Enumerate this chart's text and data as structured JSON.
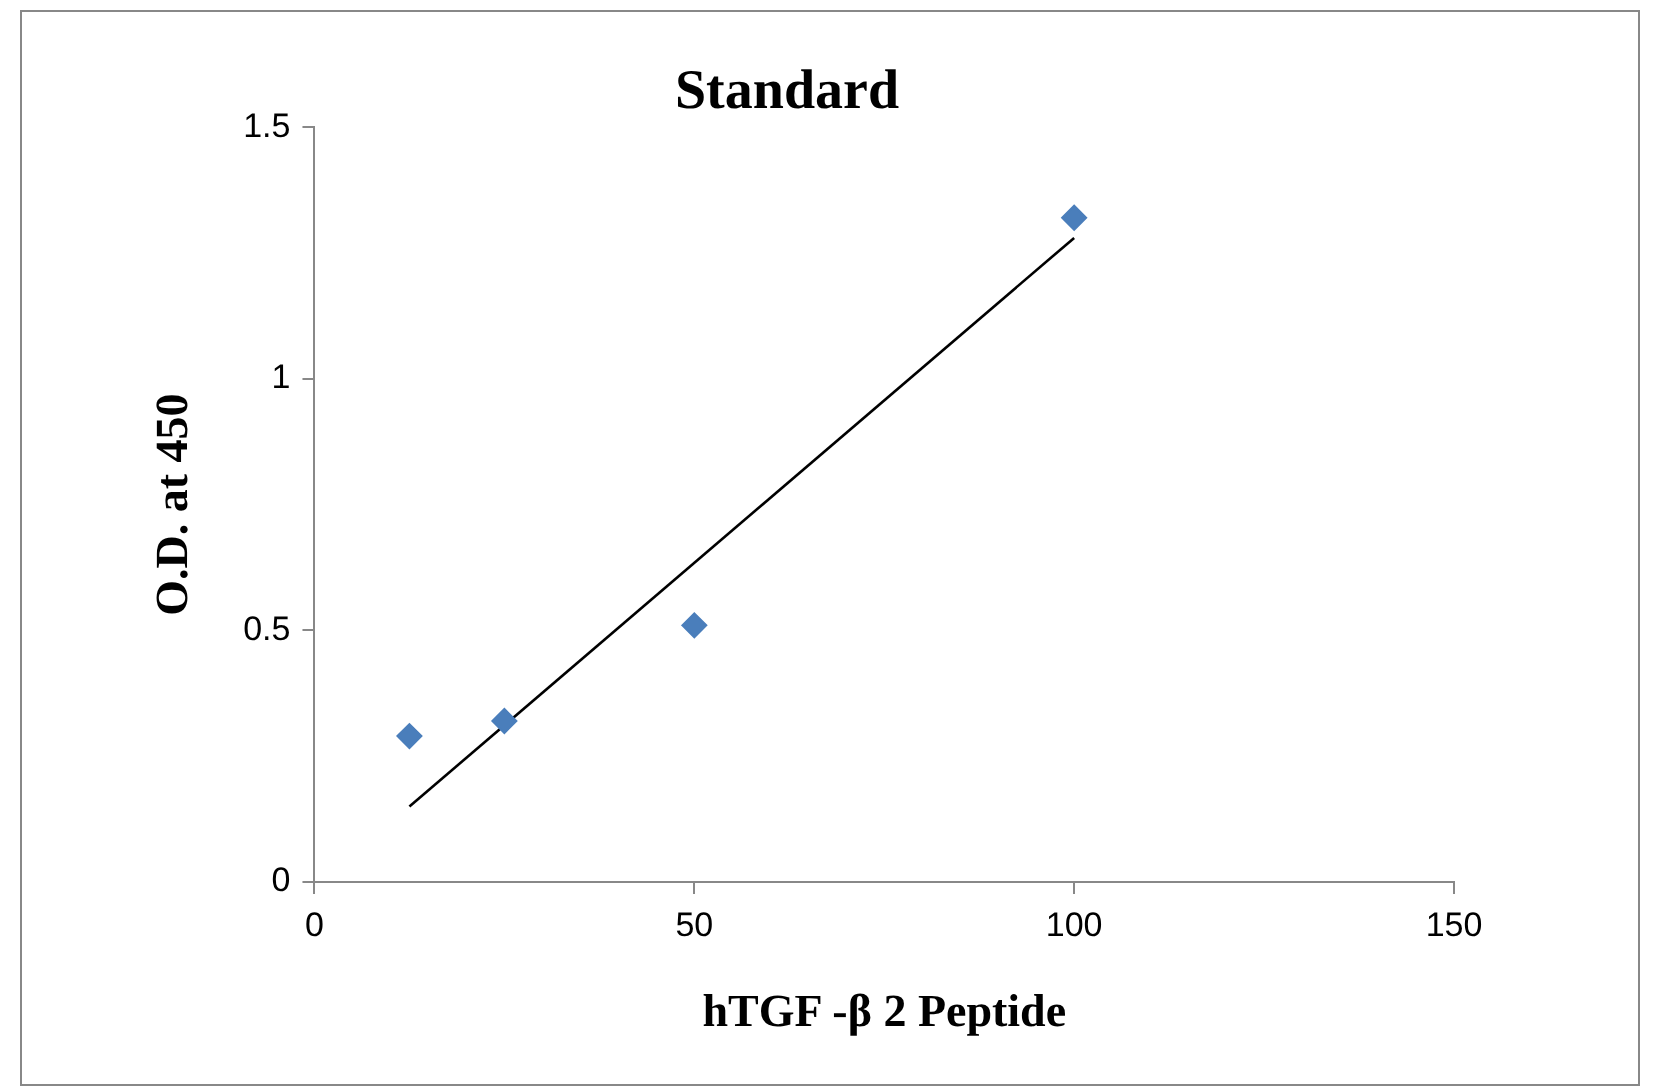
{
  "chart_data": {
    "type": "scatter",
    "title": "Standard",
    "xlabel": "hTGF -β 2 Peptide",
    "ylabel": "O.D. at 450",
    "xlim": [
      0,
      150
    ],
    "xticks": [
      0,
      50,
      100,
      150
    ],
    "ylim": [
      0,
      1.5
    ],
    "yticks": [
      0,
      0.5,
      1,
      1.5
    ],
    "grid": false,
    "legend": false,
    "series": [
      {
        "color": "#4a7ebb",
        "marker": "diamond",
        "x": [
          12.5,
          25,
          50,
          100
        ],
        "values": [
          0.29,
          0.32,
          0.51,
          1.32
        ]
      },
      {
        "type": "line",
        "color": "#000000",
        "marker": "none",
        "x": [
          12.5,
          100
        ],
        "values": [
          0.15,
          1.28
        ]
      }
    ]
  }
}
